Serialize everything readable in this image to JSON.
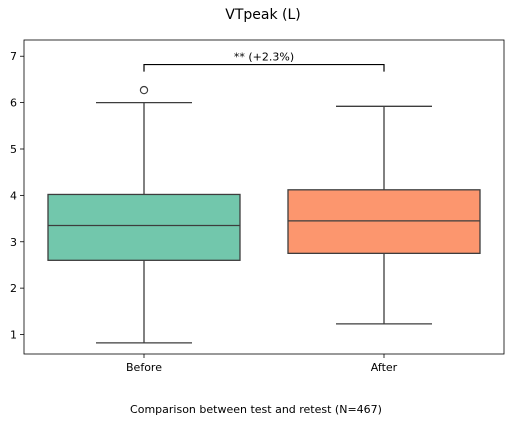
{
  "chart_data": {
    "type": "box",
    "title": "VTpeak (L)",
    "categories": [
      "Before",
      "After"
    ],
    "y_ticks": [
      1,
      2,
      3,
      4,
      5,
      6,
      7
    ],
    "ylim": [
      0.58,
      7.35
    ],
    "boxes": [
      {
        "name": "Before",
        "whisker_low": 0.82,
        "q1": 2.6,
        "median": 3.35,
        "q3": 4.02,
        "whisker_high": 6.0,
        "outliers": [
          6.27
        ],
        "color": "#66c2a5"
      },
      {
        "name": "After",
        "whisker_low": 1.23,
        "q1": 2.75,
        "median": 3.45,
        "q3": 4.12,
        "whisker_high": 5.92,
        "outliers": [],
        "color": "#fc8d62"
      }
    ],
    "annotation": {
      "text": "** (+2.3%)",
      "y": 6.82,
      "from": "Before",
      "to": "After"
    },
    "grid": false,
    "caption": "Comparison between test and retest (N=467)"
  }
}
